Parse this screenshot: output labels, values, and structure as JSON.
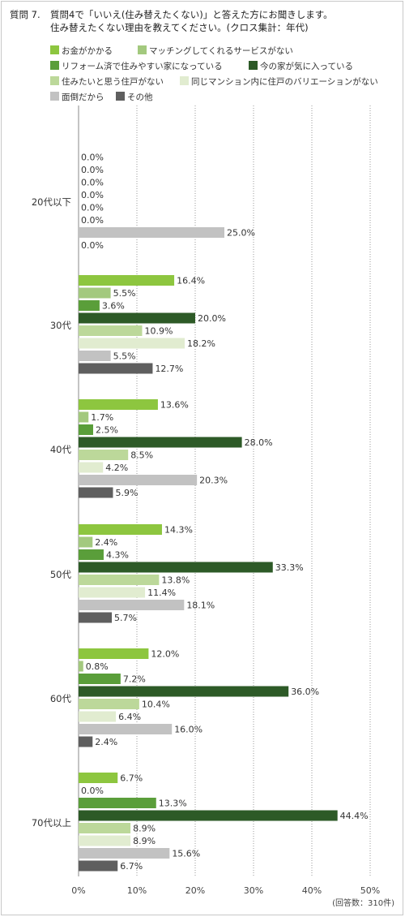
{
  "question": {
    "number": "質問 7.",
    "line1": "質問4で「いいえ(住み替えたくない)」と答えた方にお聞きします。",
    "line2": "住み替えたくない理由を教えてください。(クロス集計：年代)"
  },
  "legend_items": [
    {
      "label": "お金がかかる",
      "color": "#8dc63f"
    },
    {
      "label": "マッチングしてくれるサービスがない",
      "color": "#a3c97e"
    },
    {
      "label": "リフォーム済で住みやすい家になっている",
      "color": "#5a9e3a"
    },
    {
      "label": "今の家が気に入っている",
      "color": "#2d5a27"
    },
    {
      "label": "住みたいと思う住戸がない",
      "color": "#bcd89a"
    },
    {
      "label": "同じマンション内に住戸のバリエーションがない",
      "color": "#e1ecd0"
    },
    {
      "label": "面倒だから",
      "color": "#c2c2c2"
    },
    {
      "label": "その他",
      "color": "#5f5f5f"
    }
  ],
  "note": "(回答数：310件)",
  "chart_data": {
    "type": "bar",
    "orientation": "horizontal",
    "title": "",
    "xlim": [
      0,
      50
    ],
    "x_ticks": [
      "0%",
      "10%",
      "20%",
      "30%",
      "40%",
      "50%"
    ],
    "grid": true,
    "legend_position": "top",
    "categories": [
      "20代以下",
      "30代",
      "40代",
      "50代",
      "60代",
      "70代以上"
    ],
    "series": [
      {
        "name": "お金がかかる",
        "values": [
          0.0,
          16.4,
          13.6,
          14.3,
          12.0,
          6.7
        ]
      },
      {
        "name": "マッチングしてくれるサービスがない",
        "values": [
          0.0,
          5.5,
          1.7,
          2.4,
          0.8,
          0.0
        ]
      },
      {
        "name": "リフォーム済で住みやすい家になっている",
        "values": [
          0.0,
          3.6,
          2.5,
          4.3,
          7.2,
          13.3
        ]
      },
      {
        "name": "今の家が気に入っている",
        "values": [
          0.0,
          20.0,
          28.0,
          33.3,
          36.0,
          44.4
        ]
      },
      {
        "name": "住みたいと思う住戸がない",
        "values": [
          0.0,
          10.9,
          8.5,
          13.8,
          10.4,
          8.9
        ]
      },
      {
        "name": "同じマンション内に住戸のバリエーションがない",
        "values": [
          0.0,
          18.2,
          4.2,
          11.4,
          6.4,
          8.9
        ]
      },
      {
        "name": "面倒だから",
        "values": [
          25.0,
          5.5,
          20.3,
          18.1,
          16.0,
          15.6
        ]
      },
      {
        "name": "その他",
        "values": [
          0.0,
          12.7,
          5.9,
          5.7,
          2.4,
          6.7
        ]
      }
    ],
    "value_labels": [
      [
        "0.0%",
        "0.0%",
        "0.0%",
        "0.0%",
        "0.0%",
        "0.0%",
        "25.0%",
        "0.0%"
      ],
      [
        "16.4%",
        "5.5%",
        "3.6%",
        "20.0%",
        "10.9%",
        "18.2%",
        "5.5%",
        "12.7%"
      ],
      [
        "13.6%",
        "1.7%",
        "2.5%",
        "28.0%",
        "8.5%",
        "4.2%",
        "20.3%",
        "5.9%"
      ],
      [
        "14.3%",
        "2.4%",
        "4.3%",
        "33.3%",
        "13.8%",
        "11.4%",
        "18.1%",
        "5.7%"
      ],
      [
        "12.0%",
        "0.8%",
        "7.2%",
        "36.0%",
        "10.4%",
        "6.4%",
        "16.0%",
        "2.4%"
      ],
      [
        "6.7%",
        "0.0%",
        "13.3%",
        "44.4%",
        "8.9%",
        "8.9%",
        "15.6%",
        "6.7%"
      ]
    ]
  }
}
